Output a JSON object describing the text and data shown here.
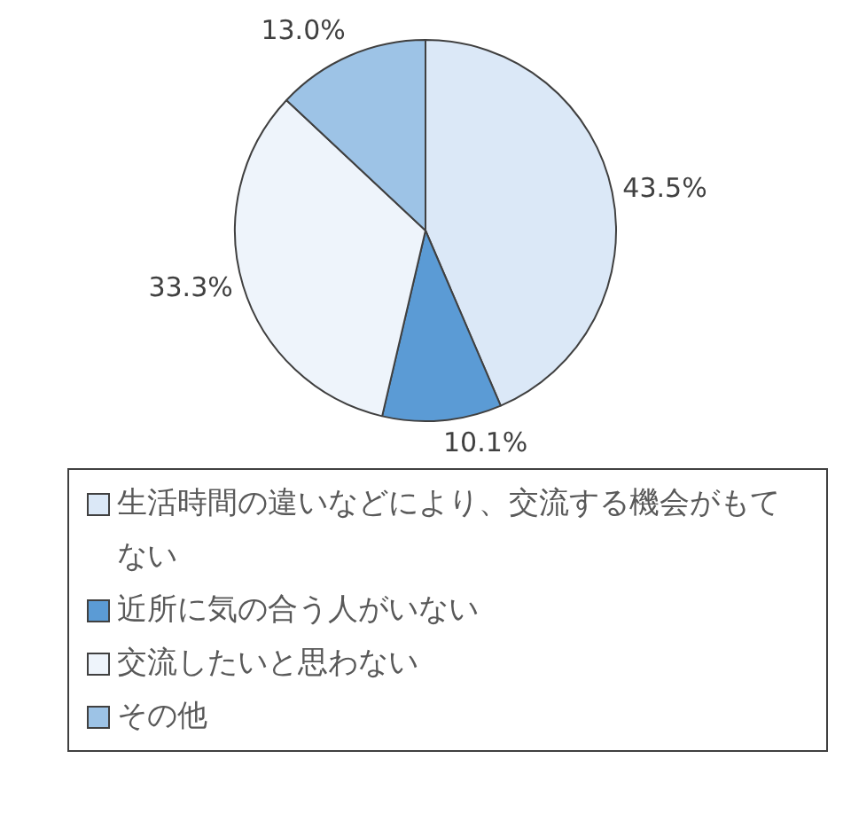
{
  "chart_data": {
    "type": "pie",
    "categories": [
      "生活時間の違いなどにより、交流する機会がもてない",
      "近所に気の合う人がいない",
      "交流したいと思わない",
      "その他"
    ],
    "values": [
      43.5,
      10.1,
      33.3,
      13.0
    ],
    "value_labels": [
      "43.5%",
      "10.1%",
      "33.3%",
      "13.0%"
    ],
    "colors": [
      "#dbe8f7",
      "#5b9bd5",
      "#eef4fb",
      "#9dc3e6"
    ],
    "legend": "bottom"
  }
}
